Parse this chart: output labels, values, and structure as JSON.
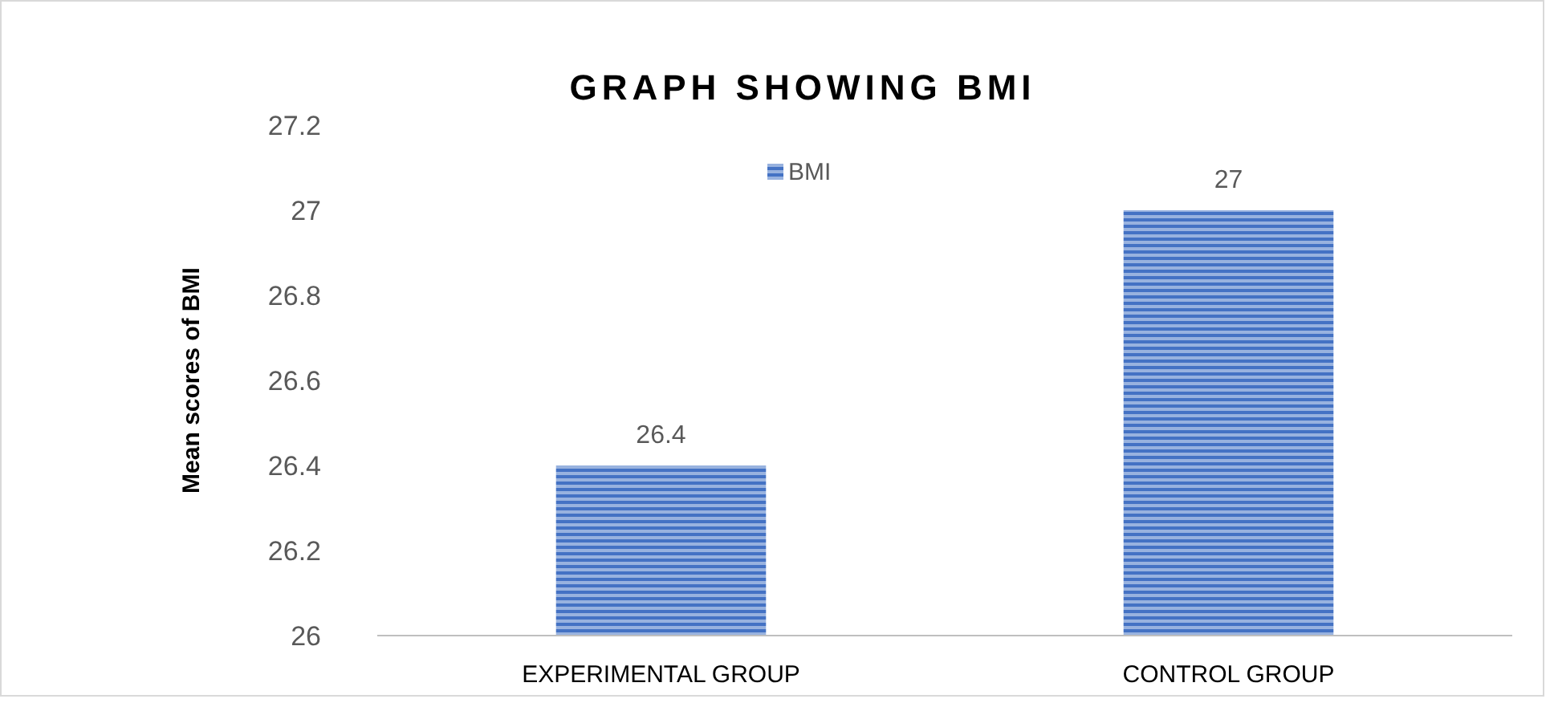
{
  "chart_data": {
    "type": "bar",
    "title": "GRAPH SHOWING BMI",
    "ylabel": "Mean scores of BMI",
    "categories": [
      "EXPERIMENTAL GROUP",
      "CONTROL GROUP"
    ],
    "series": [
      {
        "name": "BMI",
        "color": "#4472c4",
        "values": [
          26.4,
          27
        ]
      }
    ],
    "ylim": [
      26,
      27.2
    ],
    "yticks": [
      26,
      26.2,
      26.4,
      26.6,
      26.8,
      27,
      27.2
    ],
    "grid": false,
    "legend": "top",
    "data_labels": true
  }
}
